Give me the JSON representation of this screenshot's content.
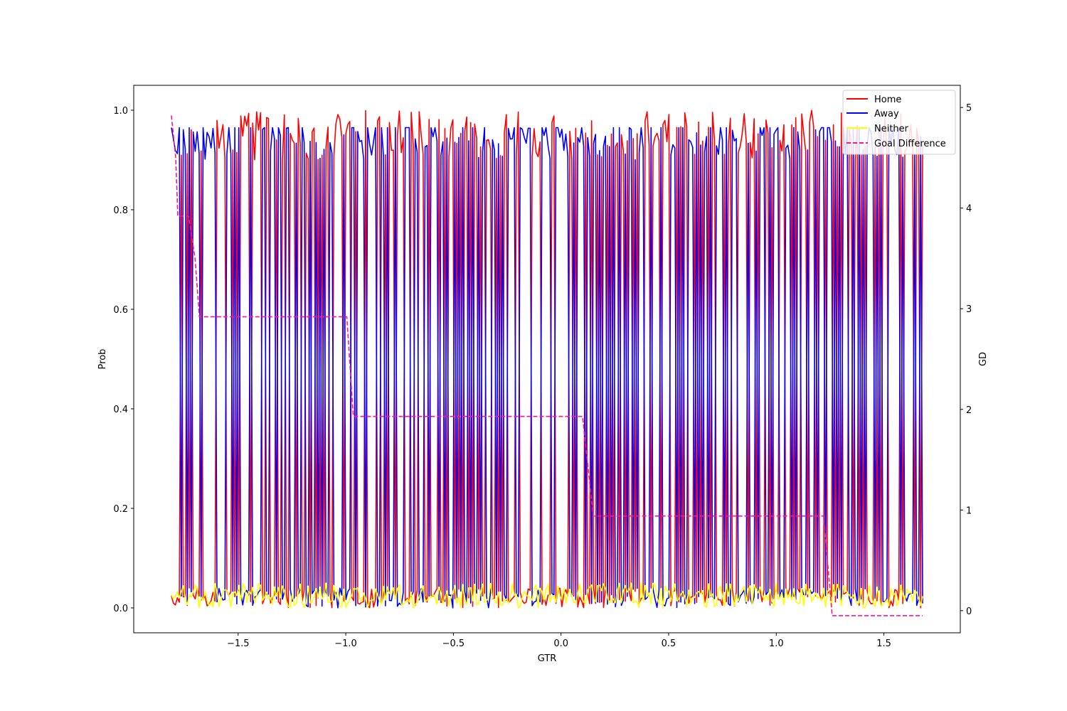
{
  "chart_data": {
    "type": "line",
    "title": "",
    "xlabel": "GTR",
    "ylabel": "Prob",
    "y2label": "GD",
    "xlim": [
      -1.985,
      1.855
    ],
    "ylim": [
      -0.05,
      1.05
    ],
    "y2lim": [
      -0.22,
      5.22
    ],
    "xticks": [
      -1.5,
      -1.0,
      -0.5,
      0.0,
      0.5,
      1.0,
      1.5
    ],
    "xtick_labels": [
      "−1.5",
      "−1.0",
      "−0.5",
      "0.0",
      "0.5",
      "1.0",
      "1.5"
    ],
    "yticks": [
      0.0,
      0.2,
      0.4,
      0.6,
      0.8,
      1.0
    ],
    "ytick_labels": [
      "0.0",
      "0.2",
      "0.4",
      "0.6",
      "0.8",
      "1.0"
    ],
    "y2ticks": [
      0,
      1,
      2,
      3,
      4,
      5
    ],
    "y2tick_labels": [
      "0",
      "1",
      "2",
      "3",
      "4",
      "5"
    ],
    "grid": false,
    "legend_position": "top-right",
    "x_range": [
      -1.81,
      1.68
    ],
    "sample_count": 380,
    "series": [
      {
        "name": "Home",
        "color": "#ff0000",
        "axis": "left",
        "style": "solid",
        "low_range": [
          0.0,
          0.04
        ],
        "high_range": [
          0.9,
          1.0
        ]
      },
      {
        "name": "Away",
        "color": "#0000ff",
        "axis": "left",
        "style": "solid",
        "low_range": [
          0.0,
          0.04
        ],
        "high_range": [
          0.9,
          0.97
        ]
      },
      {
        "name": "Neither",
        "color": "#ffff00",
        "axis": "left",
        "style": "solid",
        "low_range": [
          0.0,
          0.08
        ],
        "high_range": [
          0.0,
          0.08
        ]
      },
      {
        "name": "Goal Difference",
        "color": "#ff1493",
        "axis": "right",
        "style": "dashed",
        "x": [
          -1.81,
          -1.79,
          -1.78,
          -1.73,
          -1.7,
          -1.68,
          -0.995,
          -0.965,
          0.1,
          0.15,
          1.22,
          1.26,
          1.68
        ],
        "values": [
          4.92,
          4.5,
          3.92,
          3.92,
          3.5,
          2.92,
          2.92,
          1.93,
          1.93,
          0.94,
          0.94,
          -0.05,
          -0.05
        ]
      }
    ]
  }
}
